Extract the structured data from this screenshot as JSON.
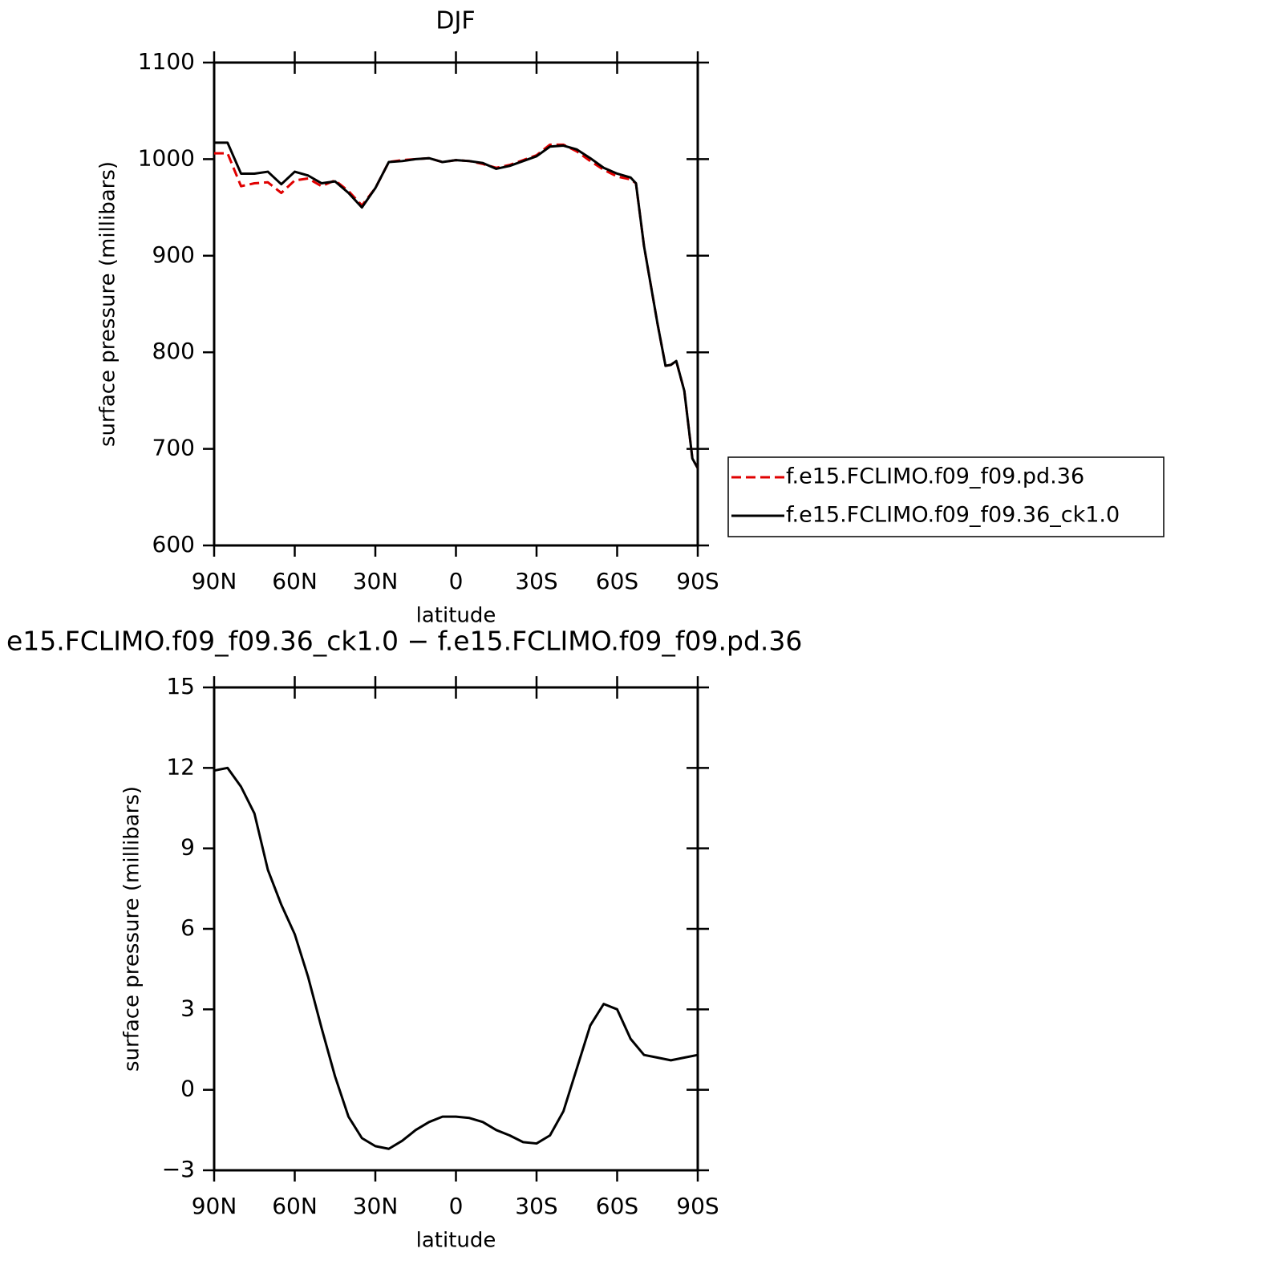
{
  "chart_data": [
    {
      "type": "line",
      "title": "DJF",
      "xlabel": "latitude",
      "ylabel": "surface pressure (millibars)",
      "x": [
        90,
        85,
        80,
        75,
        70,
        65,
        60,
        55,
        50,
        45,
        40,
        35,
        30,
        25,
        20,
        15,
        10,
        5,
        0,
        -5,
        -10,
        -15,
        -20,
        -25,
        -30,
        -35,
        -40,
        -45,
        -50,
        -55,
        -60,
        -65,
        -67,
        -70,
        -75,
        -78,
        -80,
        -82,
        -85,
        -88,
        -90
      ],
      "series": [
        {
          "name": "f.e15.FCLIMO.f09_f09.pd.36",
          "color": "#e00000",
          "style": "dashed",
          "values": [
            1006,
            1006,
            972,
            975,
            976,
            965,
            978,
            980,
            972,
            978,
            967,
            952,
            970,
            997,
            999,
            1000,
            1001,
            997,
            999,
            998,
            995,
            991,
            994,
            999,
            1004,
            1015,
            1015,
            1008,
            998,
            989,
            982,
            979,
            975,
            910,
            830,
            786,
            787,
            791,
            760,
            690,
            680
          ]
        },
        {
          "name": "f.e15.FCLIMO.f09_f09.36_ck1.0",
          "color": "#000000",
          "style": "solid",
          "values": [
            1017,
            1017,
            985,
            985,
            987,
            974,
            987,
            983,
            975,
            977,
            965,
            950,
            970,
            997,
            998,
            1000,
            1001,
            997,
            999,
            998,
            996,
            990,
            993,
            998,
            1003,
            1013,
            1014,
            1010,
            1001,
            991,
            985,
            981,
            975,
            910,
            830,
            786,
            787,
            791,
            760,
            690,
            680
          ]
        }
      ],
      "xlim": [
        90,
        -90
      ],
      "xticks": [
        {
          "value": 90,
          "label": "90N"
        },
        {
          "value": 60,
          "label": "60N"
        },
        {
          "value": 30,
          "label": "30N"
        },
        0,
        {
          "value": -30,
          "label": "30S"
        },
        {
          "value": -60,
          "label": "60S"
        },
        {
          "value": -90,
          "label": "90S"
        }
      ],
      "ylim": [
        600,
        1100
      ],
      "yticks": [
        600,
        700,
        800,
        900,
        1000,
        1100
      ],
      "legend": "right"
    },
    {
      "type": "line",
      "title": "e15.FCLIMO.f09_f09.36_ck1.0 − f.e15.FCLIMO.f09_f09.pd.36",
      "xlabel": "latitude",
      "ylabel": "surface pressure (millibars)",
      "x": [
        90,
        85,
        80,
        75,
        70,
        65,
        60,
        55,
        50,
        45,
        40,
        35,
        30,
        25,
        20,
        15,
        10,
        5,
        0,
        -5,
        -10,
        -15,
        -20,
        -25,
        -30,
        -35,
        -40,
        -45,
        -50,
        -55,
        -60,
        -65,
        -70,
        -75,
        -80,
        -85,
        -90
      ],
      "series": [
        {
          "color": "#000000",
          "style": "solid",
          "values": [
            11.9,
            12.0,
            11.3,
            10.3,
            8.2,
            6.9,
            5.8,
            4.2,
            2.3,
            0.5,
            -1.0,
            -1.8,
            -2.1,
            -2.2,
            -1.9,
            -1.5,
            -1.2,
            -1.0,
            -1.0,
            -1.05,
            -1.2,
            -1.5,
            -1.7,
            -1.95,
            -2.0,
            -1.7,
            -0.8,
            0.8,
            2.4,
            3.2,
            3.0,
            1.9,
            1.3,
            1.2,
            1.1,
            1.2,
            1.3
          ]
        }
      ],
      "xlim": [
        90,
        -90
      ],
      "xticks": [
        {
          "value": 90,
          "label": "90N"
        },
        {
          "value": 60,
          "label": "60N"
        },
        {
          "value": 30,
          "label": "30N"
        },
        0,
        {
          "value": -30,
          "label": "30S"
        },
        {
          "value": -60,
          "label": "60S"
        },
        {
          "value": -90,
          "label": "90S"
        }
      ],
      "ylim": [
        -3,
        15
      ],
      "yticks": [
        {
          "value": -3,
          "label": "−3"
        },
        0,
        3,
        6,
        9,
        12,
        15
      ]
    }
  ]
}
